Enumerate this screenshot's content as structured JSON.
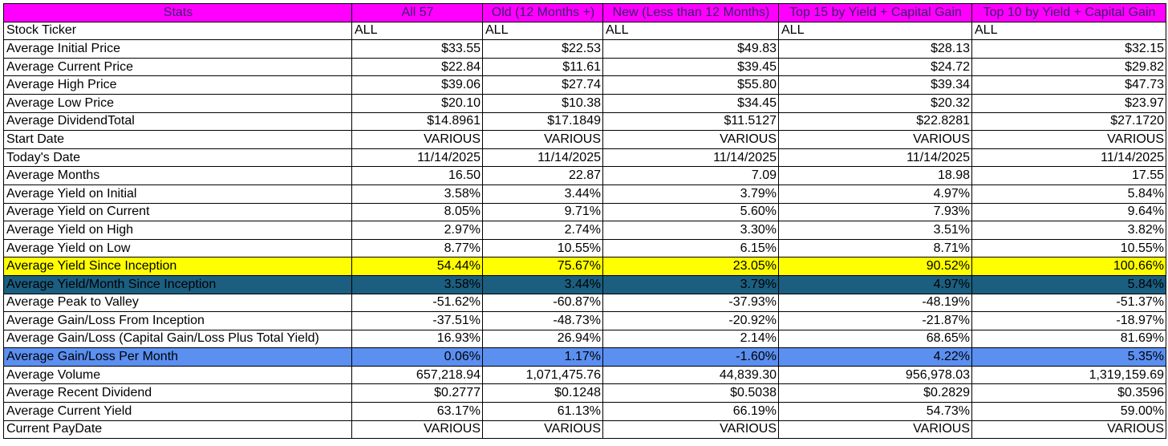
{
  "headers": [
    "Stats",
    "All 57",
    "Old (12 Months +)",
    "New (Less than 12 Months)",
    "Top 15 by Yield + Capital Gain",
    "Top 10 by Yield + Capital Gain"
  ],
  "colors": {
    "header_bg": "#ff00ff",
    "yellow": "#ffff00",
    "teal": "#1b5e80",
    "blue": "#5b8ff0"
  },
  "rows": [
    {
      "label": "Stock Ticker",
      "values": [
        "ALL",
        "ALL",
        "ALL",
        "ALL",
        "ALL"
      ]
    },
    {
      "label": "Average Initial Price",
      "values": [
        "$33.55",
        "$22.53",
        "$49.83",
        "$28.13",
        "$32.15"
      ]
    },
    {
      "label": "Average Current Price",
      "values": [
        "$22.84",
        "$11.61",
        "$39.45",
        "$24.72",
        "$29.82"
      ]
    },
    {
      "label": "Average High Price",
      "values": [
        "$39.06",
        "$27.74",
        "$55.80",
        "$39.34",
        "$47.73"
      ]
    },
    {
      "label": "Average Low Price",
      "values": [
        "$20.10",
        "$10.38",
        "$34.45",
        "$20.32",
        "$23.97"
      ]
    },
    {
      "label": "Average DividendTotal",
      "values": [
        "$14.8961",
        "$17.1849",
        "$11.5127",
        "$22.8281",
        "$27.1720"
      ]
    },
    {
      "label": "Start Date",
      "values": [
        "VARIOUS",
        "VARIOUS",
        "VARIOUS",
        "VARIOUS",
        "VARIOUS"
      ]
    },
    {
      "label": "Today's Date",
      "values": [
        "11/14/2025",
        "11/14/2025",
        "11/14/2025",
        "11/14/2025",
        "11/14/2025"
      ]
    },
    {
      "label": "Average Months",
      "values": [
        "16.50",
        "22.87",
        "7.09",
        "18.98",
        "17.55"
      ]
    },
    {
      "label": "Average Yield on Initial",
      "values": [
        "3.58%",
        "3.44%",
        "3.79%",
        "4.97%",
        "5.84%"
      ]
    },
    {
      "label": "Average Yield on Current",
      "values": [
        "8.05%",
        "9.71%",
        "5.60%",
        "7.93%",
        "9.64%"
      ]
    },
    {
      "label": "Average Yield on High",
      "values": [
        "2.97%",
        "2.74%",
        "3.30%",
        "3.51%",
        "3.82%"
      ]
    },
    {
      "label": "Average Yield on Low",
      "values": [
        "8.77%",
        "10.55%",
        "6.15%",
        "8.71%",
        "10.55%"
      ]
    },
    {
      "label": "Average Yield Since Inception",
      "values": [
        "54.44%",
        "75.67%",
        "23.05%",
        "90.52%",
        "100.66%"
      ]
    },
    {
      "label": "Average Yield/Month Since Inception",
      "values": [
        "3.58%",
        "3.44%",
        "3.79%",
        "4.97%",
        "5.84%"
      ]
    },
    {
      "label": "Average Peak to Valley",
      "values": [
        "-51.62%",
        "-60.87%",
        "-37.93%",
        "-48.19%",
        "-51.37%"
      ]
    },
    {
      "label": "Average Gain/Loss From Inception",
      "values": [
        "-37.51%",
        "-48.73%",
        "-20.92%",
        "-21.87%",
        "-18.97%"
      ]
    },
    {
      "label": "Average Gain/Loss (Capital Gain/Loss Plus Total Yield)",
      "values": [
        "16.93%",
        "26.94%",
        "2.14%",
        "68.65%",
        "81.69%"
      ]
    },
    {
      "label": "Average Gain/Loss Per Month",
      "values": [
        "0.06%",
        "1.17%",
        "-1.60%",
        "4.22%",
        "5.35%"
      ]
    },
    {
      "label": "Average Volume",
      "values": [
        "657,218.94",
        "1,071,475.76",
        "44,839.30",
        "956,978.03",
        "1,319,159.69"
      ]
    },
    {
      "label": "Average Recent Dividend",
      "values": [
        "$0.2777",
        "$0.1248",
        "$0.5038",
        "$0.2829",
        "$0.3596"
      ]
    },
    {
      "label": "Average Current Yield",
      "values": [
        "63.17%",
        "61.13%",
        "66.19%",
        "54.73%",
        "59.00%"
      ]
    },
    {
      "label": "Current PayDate",
      "values": [
        "VARIOUS",
        "VARIOUS",
        "VARIOUS",
        "VARIOUS",
        "VARIOUS"
      ]
    }
  ]
}
